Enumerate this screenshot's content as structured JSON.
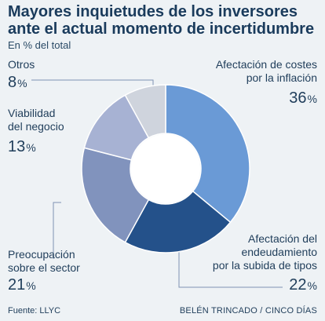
{
  "chart_data": {
    "type": "pie",
    "title": "Mayores inquietudes de los inversores ante el actual momento de incertidumbre",
    "subtitle": "En % del total",
    "unit": "%",
    "slices": [
      {
        "label": "Afectación de costes por la inflación",
        "label_lines": [
          "Afectación de costes",
          "por la inflación"
        ],
        "value": 36,
        "color": "#6a9ad6"
      },
      {
        "label": "Afectación del endeudamiento por la subida de tipos",
        "label_lines": [
          "Afectación del",
          "endeudamiento",
          "por la subida de tipos"
        ],
        "value": 22,
        "color": "#24518a"
      },
      {
        "label": "Preocupación sobre el sector",
        "label_lines": [
          "Preocupación",
          "sobre el sector"
        ],
        "value": 21,
        "color": "#8193bd"
      },
      {
        "label": "Viabilidad del negocio",
        "label_lines": [
          "Viabilidad",
          "del negocio"
        ],
        "value": 13,
        "color": "#a7b2d3"
      },
      {
        "label": "Otros",
        "label_lines": [
          "Otros"
        ],
        "value": 8,
        "color": "#cfd4dd"
      }
    ]
  },
  "footer": {
    "source": "Fuente: LLYC",
    "credit": "BELÉN TRINCADO / CINCO DÍAS"
  }
}
